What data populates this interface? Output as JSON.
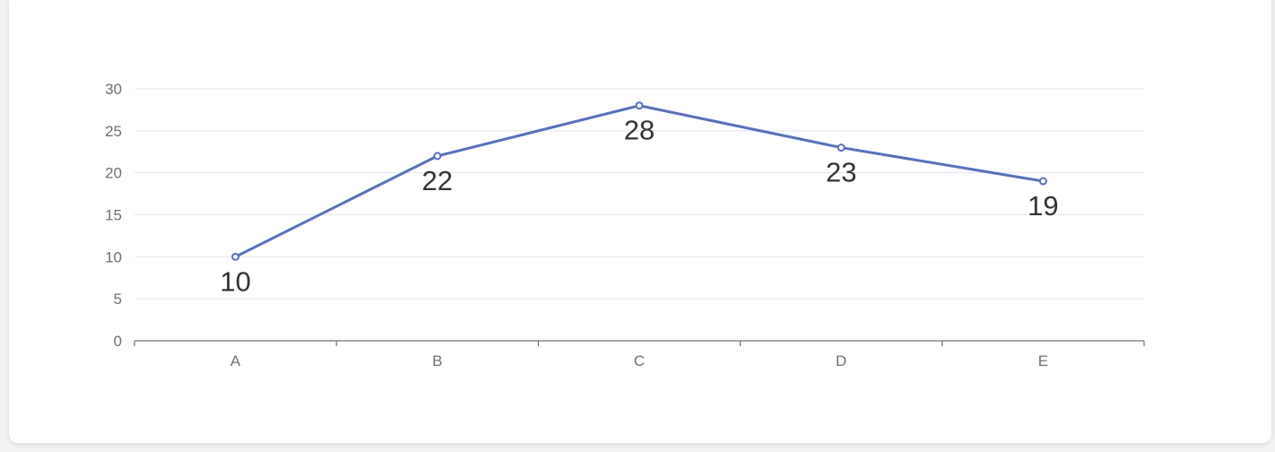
{
  "chart_data": {
    "type": "line",
    "categories": [
      "A",
      "B",
      "C",
      "D",
      "E"
    ],
    "series": [
      {
        "values": [
          10,
          22,
          28,
          23,
          19
        ]
      }
    ],
    "ylim": [
      0,
      30
    ],
    "yticks": [
      "0",
      "5",
      "10",
      "15",
      "20",
      "25",
      "30"
    ],
    "show_data_labels": true,
    "data_label_position": "bottom",
    "grid": "horizontal",
    "legend": "none",
    "colors": {
      "line": "#5470c6",
      "grid": "#e0e6f1",
      "axis": "#6e7079",
      "label": "#333333",
      "card": "#ffffff",
      "background": "#f2f3f5"
    }
  }
}
